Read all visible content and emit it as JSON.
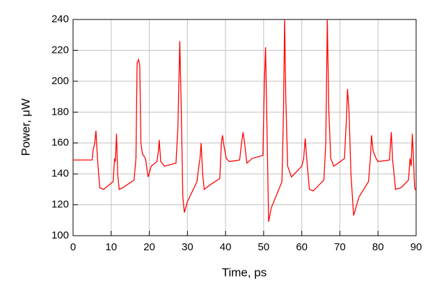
{
  "chart_data": {
    "type": "line",
    "x_label": "Time, ps",
    "y_label": "Power, μW",
    "xlim": [
      0,
      90
    ],
    "ylim": [
      100,
      240
    ],
    "xticks": [
      0,
      10,
      20,
      30,
      40,
      50,
      60,
      70,
      80,
      90
    ],
    "yticks": [
      100,
      120,
      140,
      160,
      180,
      200,
      220,
      240
    ],
    "grid": true,
    "x": [
      0,
      5,
      5.3,
      5.7,
      6,
      6.4,
      7,
      8,
      10.5,
      10.9,
      11.1,
      11.4,
      11.7,
      12.1,
      13,
      16,
      16.5,
      16.8,
      17.2,
      17.5,
      17.8,
      18.2,
      19,
      19.7,
      20.5,
      22,
      22.4,
      22.6,
      23,
      24,
      27,
      27.5,
      28,
      28.4,
      28.8,
      29.2,
      30,
      32.5,
      33,
      33.3,
      33.6,
      34,
      34.4,
      36,
      38.5,
      38.9,
      39.2,
      39.6,
      40.2,
      41,
      43.7,
      44.2,
      44.6,
      45,
      45.6,
      47,
      49.8,
      50.2,
      50.5,
      50.8,
      51.3,
      52,
      54.8,
      55.2,
      55.5,
      55.8,
      56.3,
      57.3,
      60,
      60.5,
      60.9,
      61.3,
      62,
      63,
      65.8,
      66.3,
      66.7,
      67.1,
      67.6,
      68.4,
      69,
      71.2,
      71.7,
      72,
      72.4,
      72.9,
      73.6,
      75,
      77.5,
      78,
      78.3,
      78.7,
      79.5,
      80,
      83,
      83.3,
      83.5,
      83.8,
      84.6,
      86,
      88,
      88.4,
      88.7,
      89,
      89.3,
      89.6,
      90
    ],
    "series": [
      {
        "color": "#ff0000",
        "values": [
          149,
          149,
          156,
          160,
          168,
          150,
          131,
          130,
          135,
          150,
          148,
          166,
          140,
          130,
          131,
          136,
          150,
          212,
          214,
          210,
          160,
          153,
          150,
          138,
          145,
          148,
          155,
          162,
          148,
          145,
          147,
          170,
          226,
          180,
          125,
          115,
          122,
          135,
          145,
          150,
          160,
          140,
          130,
          133,
          137,
          160,
          165,
          158,
          150,
          148,
          149,
          160,
          167,
          160,
          147,
          150,
          152,
          200,
          222,
          180,
          109,
          118,
          135,
          180,
          240,
          190,
          145,
          138,
          145,
          150,
          163,
          150,
          130,
          129,
          136,
          160,
          240,
          180,
          150,
          145,
          146,
          150,
          175,
          195,
          180,
          140,
          113,
          125,
          135,
          150,
          165,
          155,
          150,
          148,
          149,
          160,
          167,
          150,
          130,
          131,
          136,
          150,
          145,
          166,
          150,
          131,
          129
        ]
      }
    ]
  }
}
